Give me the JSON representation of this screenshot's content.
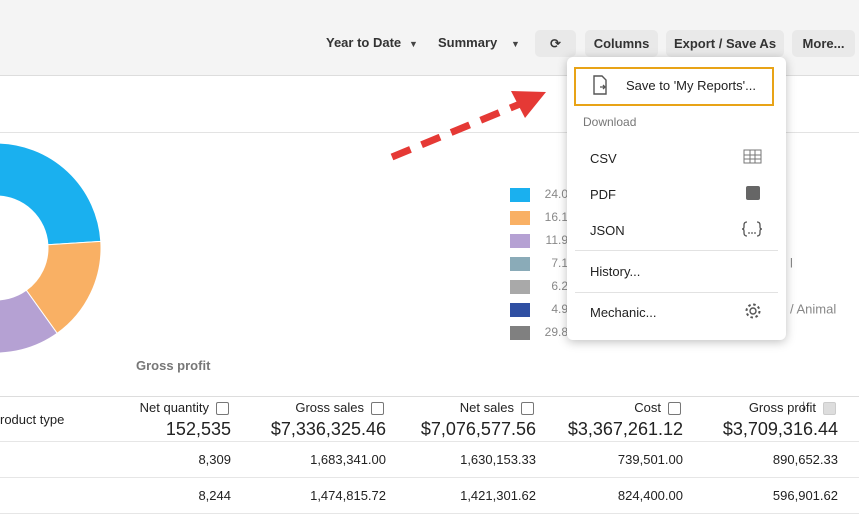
{
  "toolbar": {
    "period": "Year to Date",
    "view": "Summary",
    "buttons": [
      "Columns",
      "Export / Save As",
      "More..."
    ]
  },
  "menu": {
    "save": "Save to 'My Reports'...",
    "section": "Download",
    "downloads": [
      "CSV",
      "PDF",
      "JSON"
    ],
    "history": "History...",
    "mechanic": "Mechanic..."
  },
  "chart": {
    "label": "Gross profit",
    "values": [
      24.0,
      16.1,
      11.9,
      7.1,
      6.2,
      4.9,
      29.8
    ],
    "value_labels": [
      "24.0",
      "16.1",
      "11.9",
      "7.1",
      "6.2",
      "4.9",
      "29.8"
    ],
    "colors": [
      "#1ab0ef",
      "#f9b064",
      "#b5a1d3",
      "#8aabb8",
      "#a9a9a9",
      "#2f4fa2",
      "#808080"
    ],
    "label_fragments": [
      {
        "row": 3,
        "text": "l"
      },
      {
        "row": 5,
        "text": "/ Animal"
      }
    ]
  },
  "table": {
    "first_column": "roduct type",
    "columns": [
      "Net quantity",
      "Gross sales",
      "Net sales",
      "Cost",
      "Gross profit"
    ],
    "totals": [
      "152,535",
      "$7,336,325.46",
      "$7,076,577.56",
      "$3,367,261.12",
      "$3,709,316.44"
    ],
    "rows": [
      [
        "8,309",
        "1,683,341.00",
        "1,630,153.33",
        "739,501.00",
        "890,652.33"
      ],
      [
        "8,244",
        "1,474,815.72",
        "1,421,301.62",
        "824,400.00",
        "596,901.62"
      ]
    ]
  }
}
